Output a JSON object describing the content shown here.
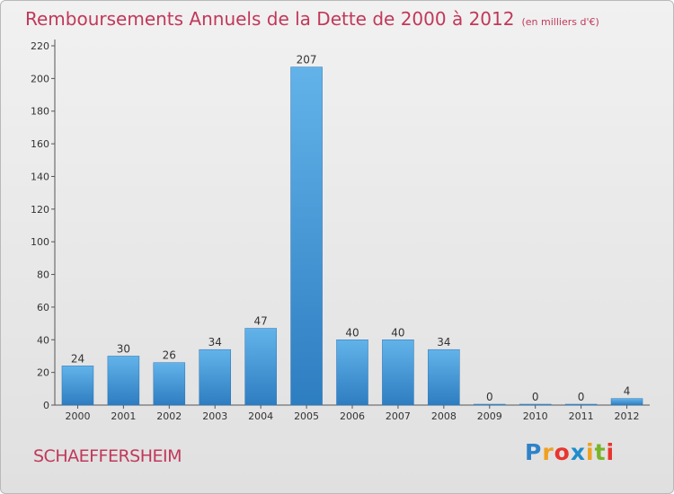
{
  "chart_title": "Remboursements Annuels de la Dette de 2000 à 2012",
  "chart_unit": "(en milliers d'€)",
  "municipality": "SCHAEFFERSHEIM",
  "brand": {
    "text": "Proxiti",
    "colors": [
      "#2f82c8",
      "#f0a020",
      "#e8352d",
      "#1f8ccc",
      "#f0a020",
      "#78b428",
      "#e8352d"
    ]
  },
  "colors": {
    "bar_top": "#63b3ea",
    "bar_bottom": "#2d7dc1",
    "axis": "#555555",
    "text": "#333333",
    "title": "#c1385a"
  },
  "chart_data": {
    "type": "bar",
    "title": "Remboursements Annuels de la Dette de 2000 à 2012",
    "xlabel": "",
    "ylabel": "",
    "categories": [
      "2000",
      "2001",
      "2002",
      "2003",
      "2004",
      "2005",
      "2006",
      "2007",
      "2008",
      "2009",
      "2010",
      "2011",
      "2012"
    ],
    "values": [
      24,
      30,
      26,
      34,
      47,
      207,
      40,
      40,
      34,
      0,
      0,
      0,
      4
    ],
    "ylim": [
      0,
      220
    ],
    "yticks": [
      0,
      20,
      40,
      60,
      80,
      100,
      120,
      140,
      160,
      180,
      200,
      220
    ],
    "grid": false,
    "legend": "none"
  }
}
